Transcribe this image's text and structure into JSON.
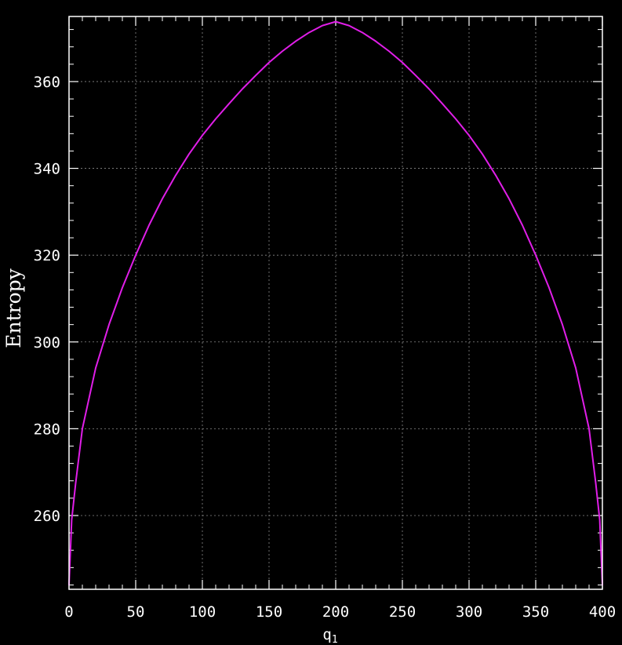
{
  "chart_data": {
    "type": "line",
    "title": "",
    "xlabel": "q",
    "xlabel_subscript": "1",
    "ylabel": "Entropy",
    "xlim": [
      0,
      400
    ],
    "ylim": [
      243,
      375
    ],
    "x_ticks": [
      0,
      50,
      100,
      150,
      200,
      250,
      300,
      350,
      400
    ],
    "y_ticks": [
      260,
      280,
      300,
      320,
      340,
      360
    ],
    "x_minor_step": 10,
    "y_minor_step": 4,
    "grid": true,
    "legend": "none",
    "background": "#000000",
    "series": [
      {
        "color": "#e01ee8",
        "x": [
          0,
          2,
          5,
          10,
          20,
          30,
          40,
          50,
          60,
          70,
          80,
          90,
          100,
          110,
          120,
          130,
          140,
          150,
          160,
          170,
          180,
          190,
          200,
          210,
          220,
          230,
          240,
          250,
          260,
          270,
          280,
          290,
          300,
          310,
          320,
          330,
          340,
          350,
          360,
          370,
          380,
          390,
          395,
          398,
          400
        ],
        "y": [
          244,
          259,
          267.5,
          280,
          294,
          304,
          312.5,
          320,
          326.9,
          333,
          338.4,
          343.3,
          347.6,
          351.4,
          354.9,
          358.3,
          361.4,
          364.4,
          367,
          369.3,
          371.3,
          372.9,
          373.8,
          372.9,
          371.3,
          369.3,
          367,
          364.4,
          361.4,
          358.3,
          354.9,
          351.4,
          347.6,
          343.3,
          338.4,
          333,
          326.9,
          320,
          312.5,
          304,
          294,
          280,
          267.5,
          259,
          244
        ]
      }
    ]
  }
}
